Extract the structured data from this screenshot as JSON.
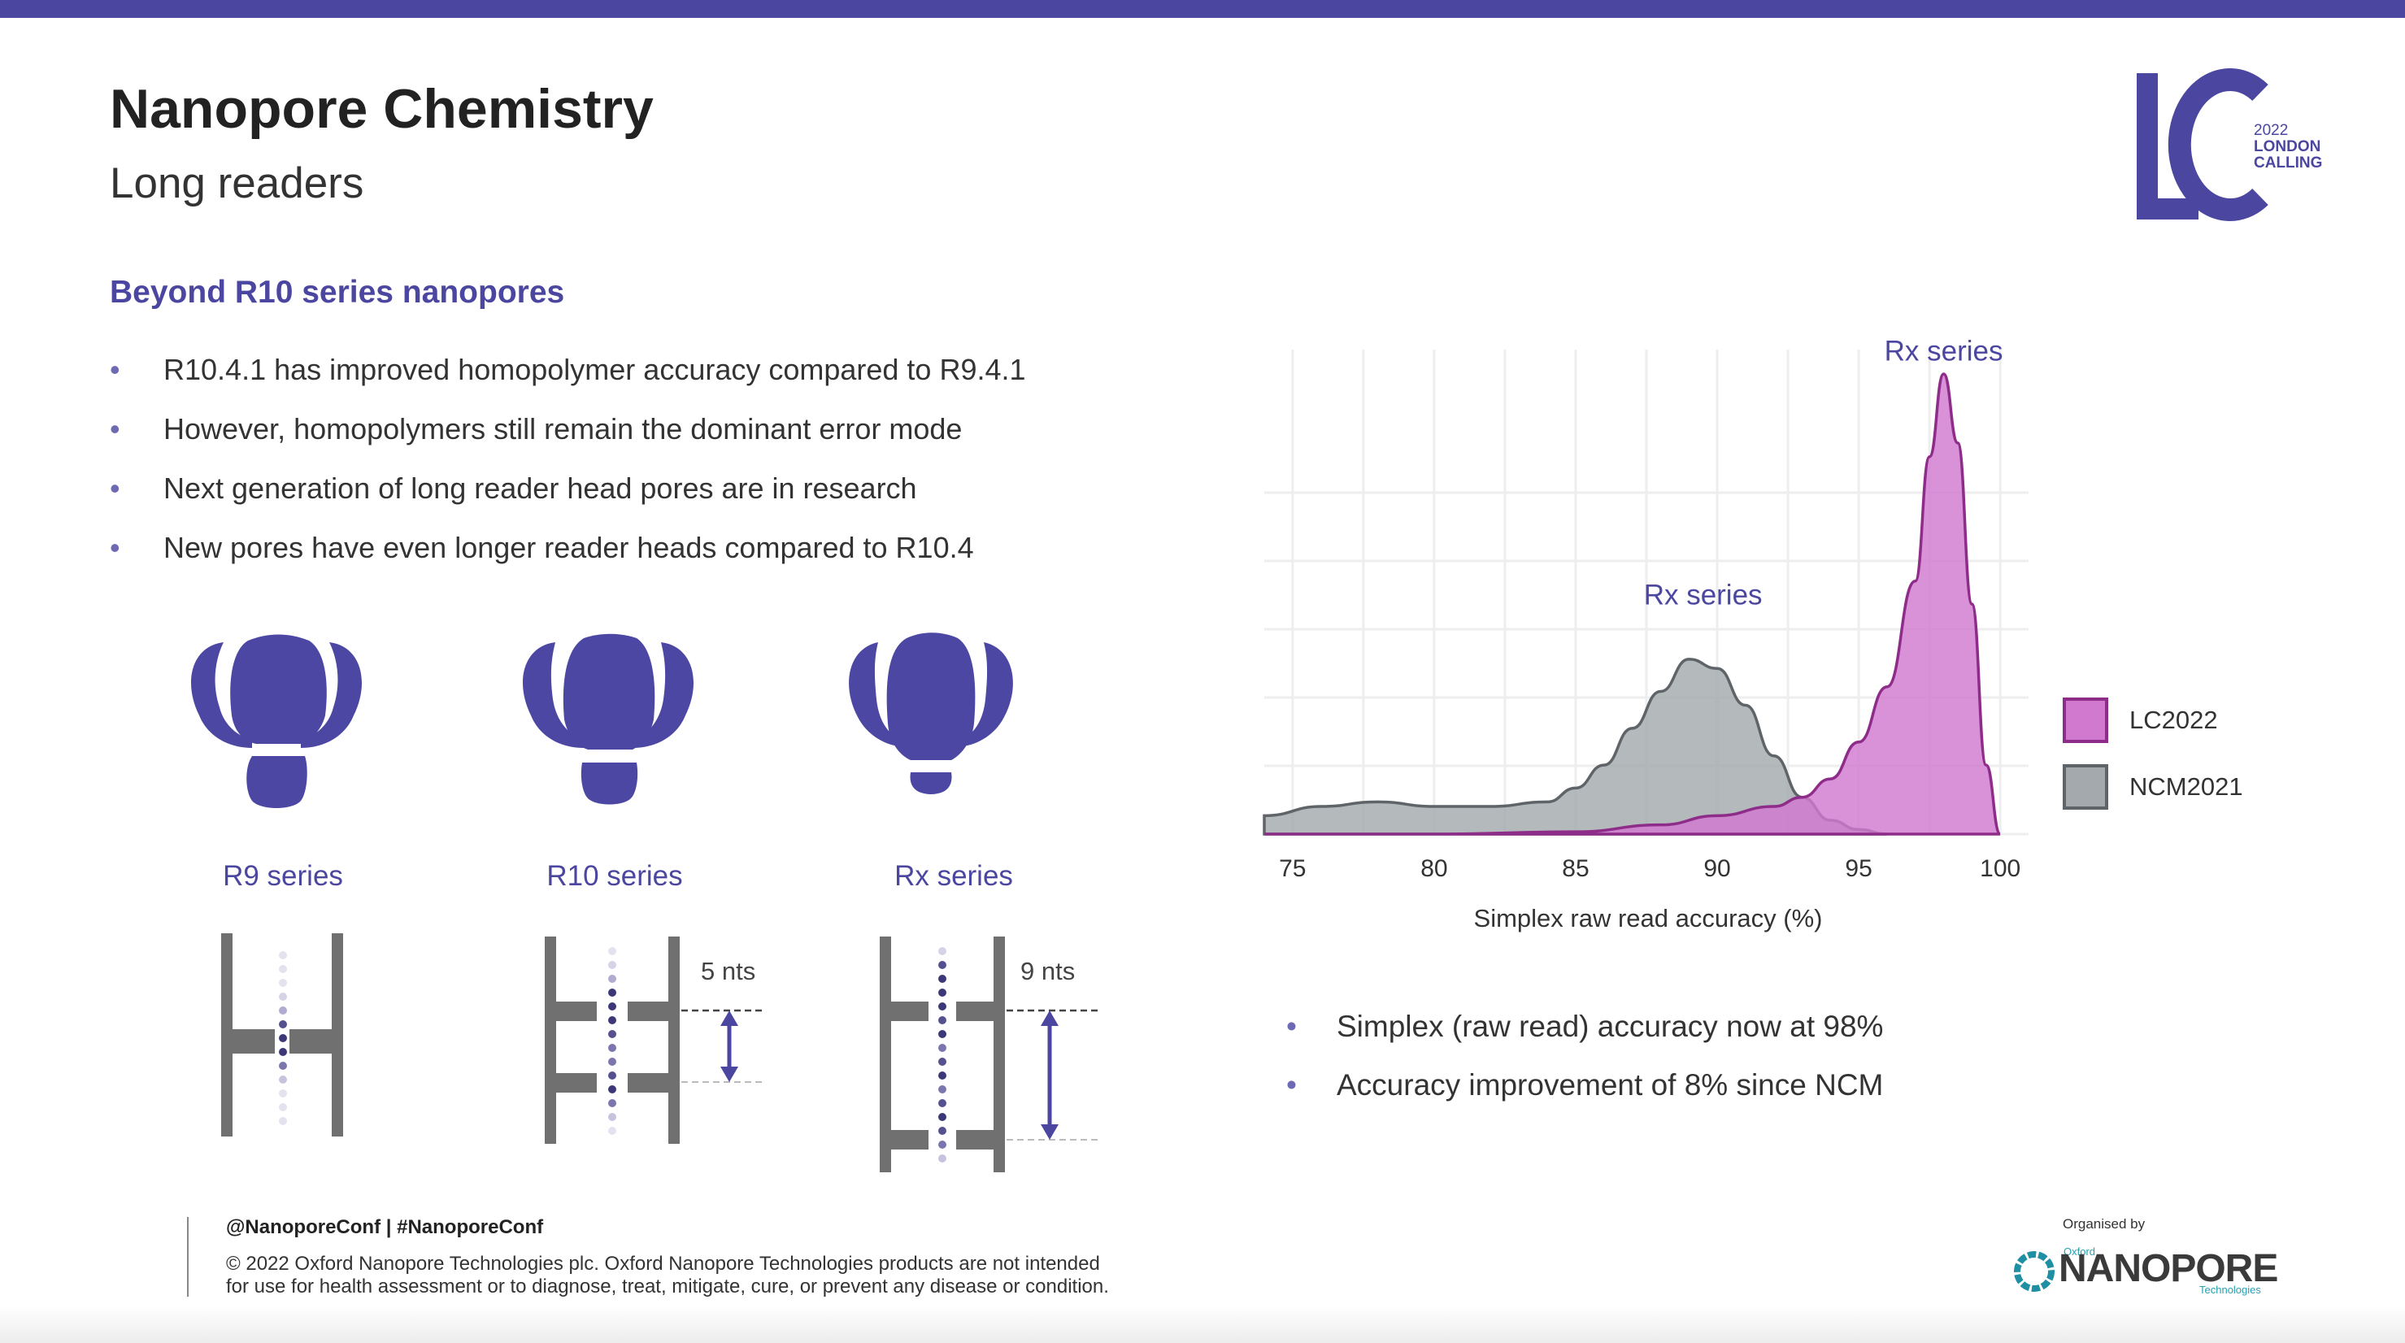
{
  "header": {
    "title": "Nanopore Chemistry",
    "subtitle": "Long readers"
  },
  "colors": {
    "brand_purple": "#4b46a0",
    "pore_purple": "#4b47a3",
    "lc2022_pink": "#d179cf",
    "ncm2021_grey": "#a4a9ad",
    "channel_grey": "#707070"
  },
  "section": {
    "heading": "Beyond R10 series nanopores",
    "bullets": [
      "R10.4.1 has improved homopolymer accuracy compared to R9.4.1",
      "However, homopolymers still remain the dominant error mode",
      "Next generation of long reader head pores are in research",
      "New pores have even longer reader heads compared to R10.4"
    ]
  },
  "pores": [
    {
      "label": "R9 series",
      "icon": "r9-pore-icon"
    },
    {
      "label": "R10 series",
      "icon": "r10-pore-icon"
    },
    {
      "label": "Rx series",
      "icon": "rx-pore-icon"
    }
  ],
  "channels": {
    "r10_spacing": "5 nts",
    "rx_spacing": "9 nts"
  },
  "chart_data": {
    "type": "area",
    "title": "",
    "xlabel": "Simplex raw read accuracy (%)",
    "ylabel": "",
    "xlim": [
      74,
      101
    ],
    "xticks": [
      75,
      80,
      85,
      90,
      95,
      100
    ],
    "ylim": [
      0,
      1
    ],
    "grid": true,
    "legend_position": "right",
    "annotations": [
      {
        "text": "Rx series",
        "x": 98,
        "y": 1.05
      },
      {
        "text": "Rx series",
        "x": 89.5,
        "y": 0.52
      }
    ],
    "series": [
      {
        "name": "NCM2021",
        "color": "#a4a9ad",
        "x": [
          74,
          76,
          78,
          80,
          82,
          84,
          85,
          86,
          87,
          88,
          89,
          90,
          91,
          92,
          93,
          94,
          95,
          96
        ],
        "y": [
          0.04,
          0.06,
          0.07,
          0.06,
          0.06,
          0.07,
          0.1,
          0.15,
          0.23,
          0.31,
          0.38,
          0.36,
          0.28,
          0.17,
          0.08,
          0.03,
          0.01,
          0.0
        ]
      },
      {
        "name": "LC2022",
        "color": "#d179cf",
        "x": [
          74,
          80,
          85,
          88,
          90,
          92,
          93,
          94,
          95,
          96,
          97,
          97.5,
          98,
          98.5,
          99,
          99.5,
          100
        ],
        "y": [
          0.0,
          0.0,
          0.005,
          0.02,
          0.04,
          0.06,
          0.08,
          0.12,
          0.2,
          0.32,
          0.55,
          0.82,
          1.0,
          0.85,
          0.5,
          0.15,
          0.0
        ]
      }
    ]
  },
  "results": {
    "bullets": [
      "Simplex (raw read) accuracy now at 98%",
      "Accuracy improvement of 8% since NCM"
    ]
  },
  "footer": {
    "handle": "@NanoporeConf | #NanoporeConf",
    "disclaimer_line1": "© 2022 Oxford Nanopore Technologies plc. Oxford Nanopore Technologies products are not intended",
    "disclaimer_line2": "for use for health assessment or to diagnose, treat, mitigate, cure, or prevent any disease or condition.",
    "organised_by": "Organised by",
    "logo_oxford": "Oxford",
    "logo_nanopore": "NANOPORE",
    "logo_technologies": "Technologies"
  },
  "event_logo": {
    "letters": "LC",
    "year": "2022",
    "line1": "LONDON",
    "line2": "CALLING"
  }
}
